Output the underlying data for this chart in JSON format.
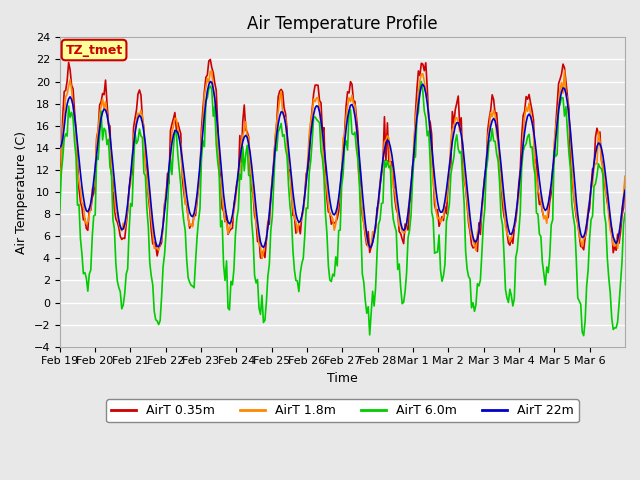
{
  "title": "Air Temperature Profile",
  "xlabel": "Time",
  "ylabel": "Air Temperature (C)",
  "ylim": [
    -4,
    24
  ],
  "yticks": [
    -4,
    -2,
    0,
    2,
    4,
    6,
    8,
    10,
    12,
    14,
    16,
    18,
    20,
    22,
    24
  ],
  "xtick_labels": [
    "Feb 19",
    "Feb 20",
    "Feb 21",
    "Feb 22",
    "Feb 23",
    "Feb 24",
    "Feb 25",
    "Feb 26",
    "Feb 27",
    "Feb 28",
    "Mar 1",
    "Mar 2",
    "Mar 3",
    "Mar 4",
    "Mar 5",
    "Mar 6"
  ],
  "series": [
    {
      "name": "AirT 0.35m",
      "color": "#cc0000"
    },
    {
      "name": "AirT 1.8m",
      "color": "#ff8800"
    },
    {
      "name": "AirT 6.0m",
      "color": "#00cc00"
    },
    {
      "name": "AirT 22m",
      "color": "#0000cc"
    }
  ],
  "legend_label": "TZ_tmet",
  "legend_box_color": "#ffff99",
  "legend_box_edge": "#cc0000",
  "plot_bg_color": "#e8e8e8",
  "grid_color": "#ffffff",
  "linewidth": 1.2,
  "title_fontsize": 12,
  "axis_fontsize": 9,
  "tick_fontsize": 8
}
